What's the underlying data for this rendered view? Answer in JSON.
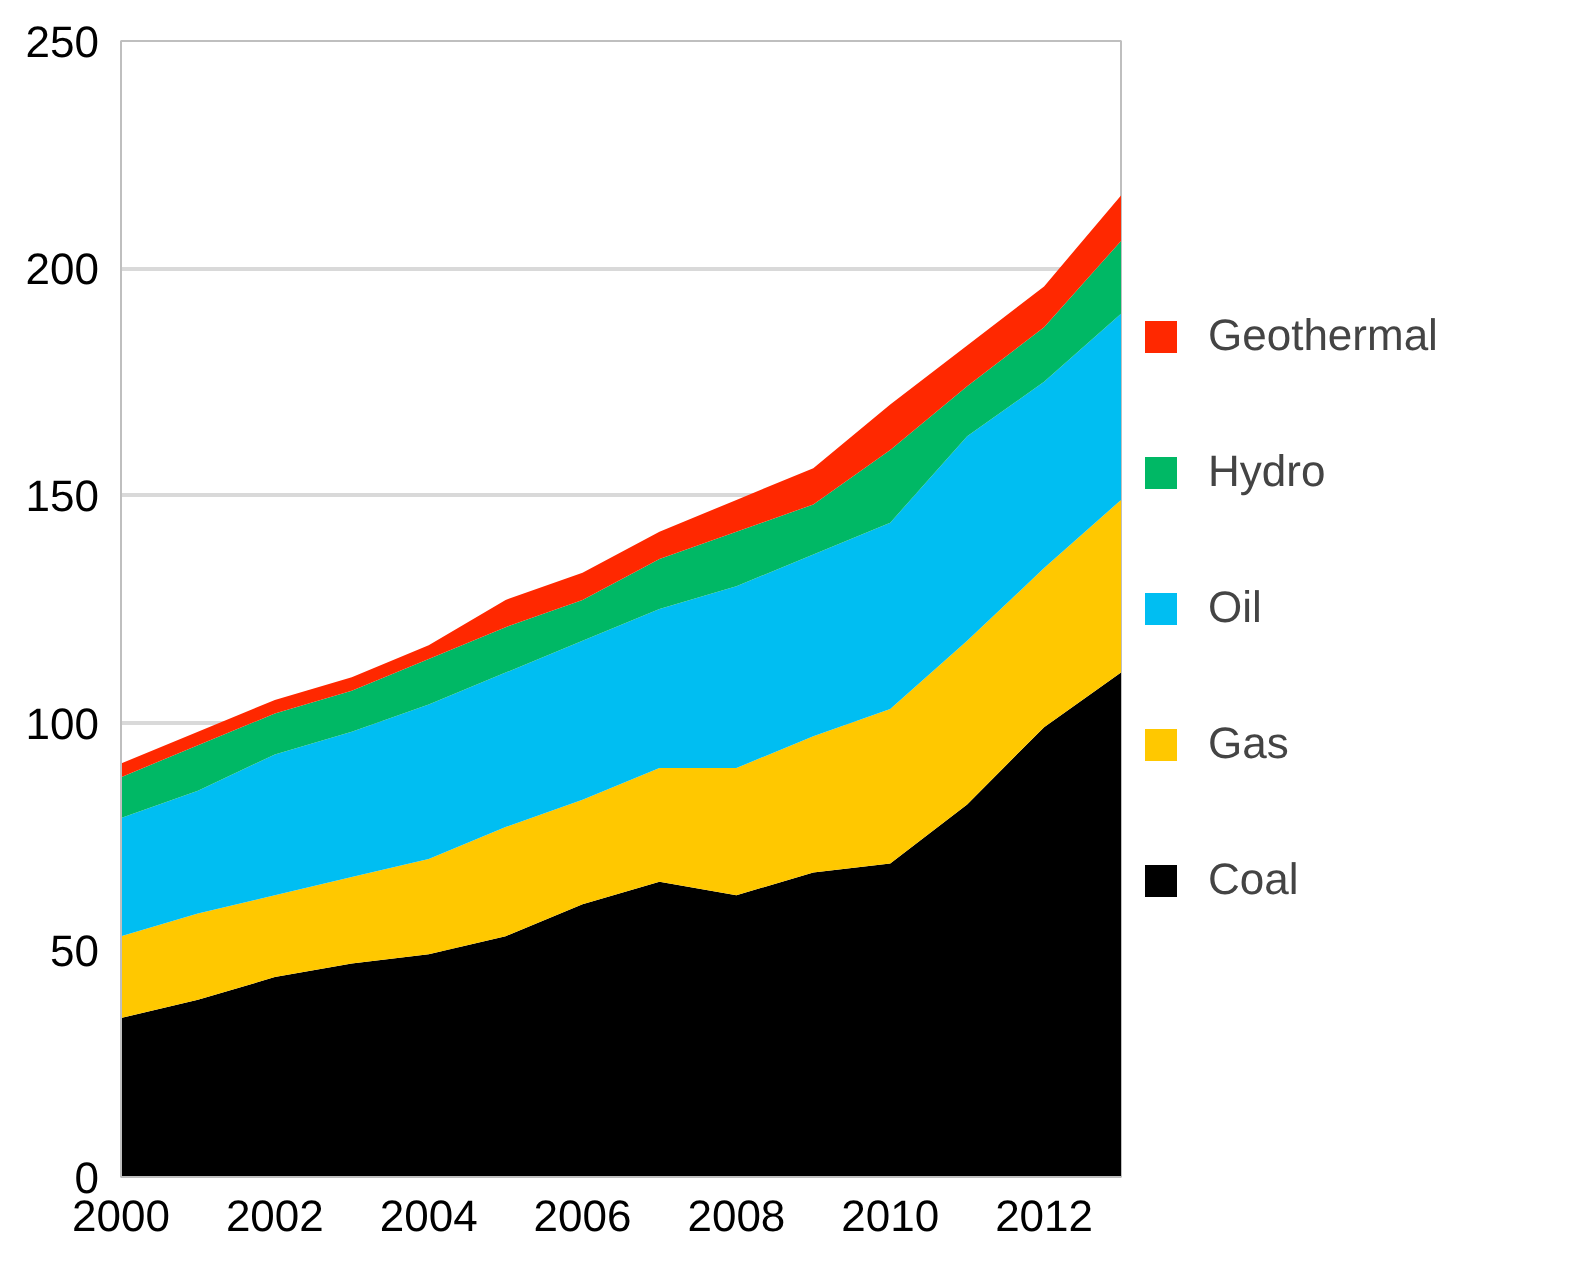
{
  "chart_data": {
    "type": "area",
    "stacked": true,
    "x": [
      2000,
      2001,
      2002,
      2003,
      2004,
      2005,
      2006,
      2007,
      2008,
      2009,
      2010,
      2011,
      2012,
      2013
    ],
    "series": [
      {
        "name": "Coal",
        "color": "#000000",
        "values": [
          35,
          39,
          44,
          47,
          49,
          53,
          60,
          65,
          62,
          67,
          69,
          82,
          99,
          111
        ]
      },
      {
        "name": "Gas",
        "color": "#ffc800",
        "values": [
          18,
          19,
          18,
          19,
          21,
          24,
          23,
          25,
          28,
          30,
          34,
          36,
          35,
          38
        ]
      },
      {
        "name": "Oil",
        "color": "#00bef2",
        "values": [
          26,
          27,
          31,
          32,
          34,
          34,
          35,
          35,
          40,
          40,
          41,
          45,
          41,
          41
        ]
      },
      {
        "name": "Hydro",
        "color": "#00b865",
        "values": [
          9,
          10,
          9,
          9,
          10,
          10,
          9,
          11,
          12,
          11,
          16,
          11,
          12,
          16
        ]
      },
      {
        "name": "Geothermal",
        "color": "#ff2800",
        "values": [
          3,
          3,
          3,
          3,
          3,
          6,
          6,
          6,
          7,
          8,
          10,
          9,
          9,
          10
        ]
      }
    ],
    "xlim": [
      2000,
      2013
    ],
    "xticks": [
      2000,
      2002,
      2004,
      2006,
      2008,
      2010,
      2012
    ],
    "ylim": [
      0,
      250
    ],
    "yticks": [
      0,
      50,
      100,
      150,
      200,
      250
    ],
    "grid": "y",
    "legend": "right"
  }
}
